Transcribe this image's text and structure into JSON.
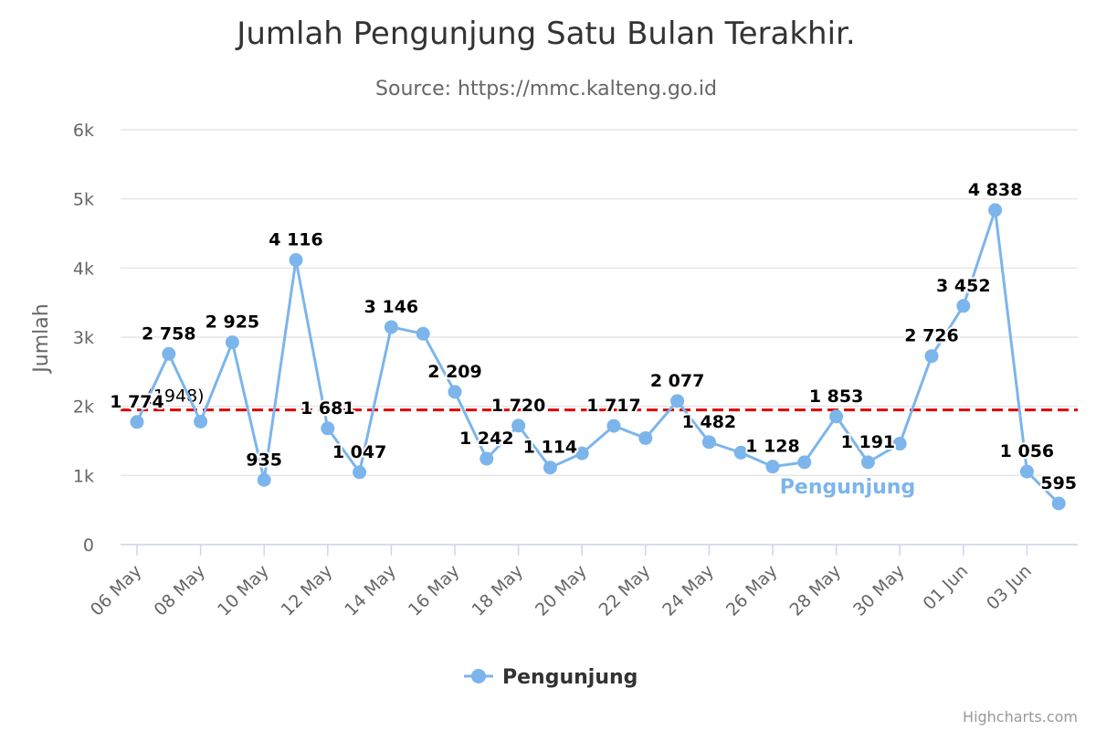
{
  "chart_data": {
    "type": "line",
    "title": "Jumlah Pengunjung Satu Bulan Terakhir.",
    "subtitle": "Source: https://mmc.kalteng.go.id",
    "ylabel": "Jumlah",
    "xlabel": "",
    "ylim": [
      0,
      6000
    ],
    "yticks": [
      0,
      1000,
      2000,
      3000,
      4000,
      5000,
      6000
    ],
    "ytick_labels": [
      "0",
      "1k",
      "2k",
      "3k",
      "4k",
      "5k",
      "6k"
    ],
    "xticks": [
      "06 May",
      "08 May",
      "10 May",
      "12 May",
      "14 May",
      "16 May",
      "18 May",
      "20 May",
      "22 May",
      "24 May",
      "26 May",
      "28 May",
      "30 May",
      "01 Jun",
      "03 Jun"
    ],
    "x": [
      "2024-05-06",
      "2024-05-07",
      "2024-05-08",
      "2024-05-09",
      "2024-05-10",
      "2024-05-11",
      "2024-05-12",
      "2024-05-13",
      "2024-05-14",
      "2024-05-15",
      "2024-05-16",
      "2024-05-17",
      "2024-05-18",
      "2024-05-19",
      "2024-05-20",
      "2024-05-21",
      "2024-05-22",
      "2024-05-23",
      "2024-05-24",
      "2024-05-25",
      "2024-05-26",
      "2024-05-27",
      "2024-05-28",
      "2024-05-29",
      "2024-05-30",
      "2024-05-31",
      "2024-06-01",
      "2024-06-02",
      "2024-06-03",
      "2024-06-04"
    ],
    "series": [
      {
        "name": "Pengunjung",
        "color": "#7cb5ec",
        "values": [
          1774,
          2758,
          1780,
          2925,
          935,
          4116,
          1681,
          1047,
          3146,
          3050,
          2209,
          1242,
          1720,
          1114,
          1320,
          1717,
          1540,
          2077,
          1482,
          1330,
          1128,
          1191,
          1853,
          1191,
          1460,
          2726,
          3452,
          4838,
          1056,
          595
        ],
        "data_labels": [
          "1 774",
          "2 758",
          "",
          "2 925",
          "935",
          "4 116",
          "1 681",
          "1 047",
          "3 146",
          "",
          "2 209",
          "1 242",
          "1 720",
          "1 114",
          "",
          "1 717",
          "",
          "2 077",
          "1 482",
          "",
          "1 128",
          "",
          "1 853",
          "1 191",
          "",
          "2 726",
          "3 452",
          "4 838",
          "1 056",
          "595"
        ]
      }
    ],
    "average_line": {
      "value": 1948,
      "label": "(1948)",
      "color": "#e00000"
    },
    "series_label": "Pengunjung",
    "legend": {
      "position": "bottom-center",
      "items": [
        "Pengunjung"
      ]
    },
    "grid": true,
    "credits": "Highcharts.com"
  }
}
